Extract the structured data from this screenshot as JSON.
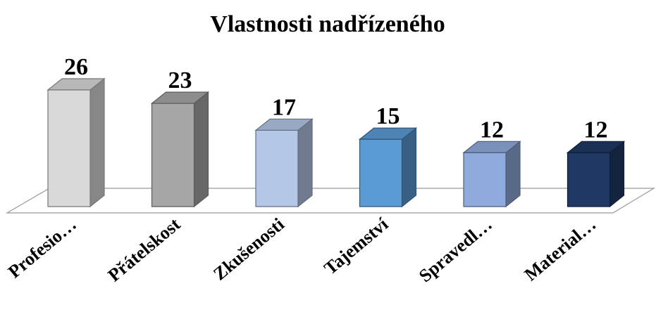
{
  "chart_data": {
    "type": "bar3d",
    "title": "Vlastnosti nadřízeného",
    "categories": [
      "Profesio…",
      "Přátelskost",
      "Zkušenosti",
      "Tajemství",
      "Spravedl…",
      "Material…"
    ],
    "values": [
      26,
      23,
      17,
      15,
      12,
      12
    ],
    "colors": [
      "#d9d9d9",
      "#a6a6a6",
      "#b4c7e7",
      "#5b9bd5",
      "#8faadc",
      "#203864"
    ]
  }
}
